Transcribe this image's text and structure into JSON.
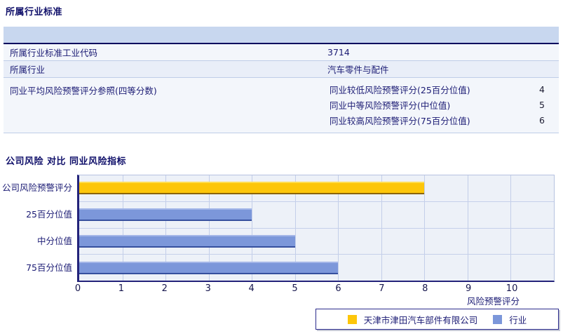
{
  "industry_section": {
    "title": "所属行业标准",
    "rows": [
      {
        "label": "所属行业标准工业代码",
        "value": "3714"
      },
      {
        "label": "所属行业",
        "value": "汽车零件与配件"
      },
      {
        "label": "同业平均风险预警评分参照(四等分数)",
        "sub_rows": [
          {
            "label": "同业较低风险预警评分(25百分位值)",
            "value": "4"
          },
          {
            "label": "同业中等风险预警评分(中位值)",
            "value": "5"
          },
          {
            "label": "同业较高风险预警评分(75百分位值)",
            "value": "6"
          }
        ]
      }
    ]
  },
  "chart_section": {
    "title": "公司风险 对比 同业风险指标"
  },
  "chart_data": {
    "type": "bar",
    "orientation": "horizontal",
    "title": "公司风险 对比 同业风险指标",
    "categories": [
      "公司风险预警评分",
      "25百分位值",
      "中分位值",
      "75百分位值"
    ],
    "series": [
      {
        "name": "天津市津田汽车部件有限公司",
        "color": "#fdc60a",
        "values": [
          8,
          null,
          null,
          null
        ]
      },
      {
        "name": "行业",
        "color": "#7c97da",
        "values": [
          null,
          4,
          5,
          6
        ]
      }
    ],
    "xlabel": "风险预警评分",
    "xticks": [
      0,
      1,
      2,
      3,
      4,
      5,
      6,
      7,
      8,
      9,
      10
    ],
    "xlim": [
      0,
      11
    ],
    "grid": "vertical",
    "plot_bg": "#edf1f8",
    "legend_position": "bottom-right",
    "legend": [
      {
        "label": "天津市津田汽车部件有限公司",
        "color": "#fdc60a"
      },
      {
        "label": "行业",
        "color": "#7c97da"
      }
    ]
  }
}
